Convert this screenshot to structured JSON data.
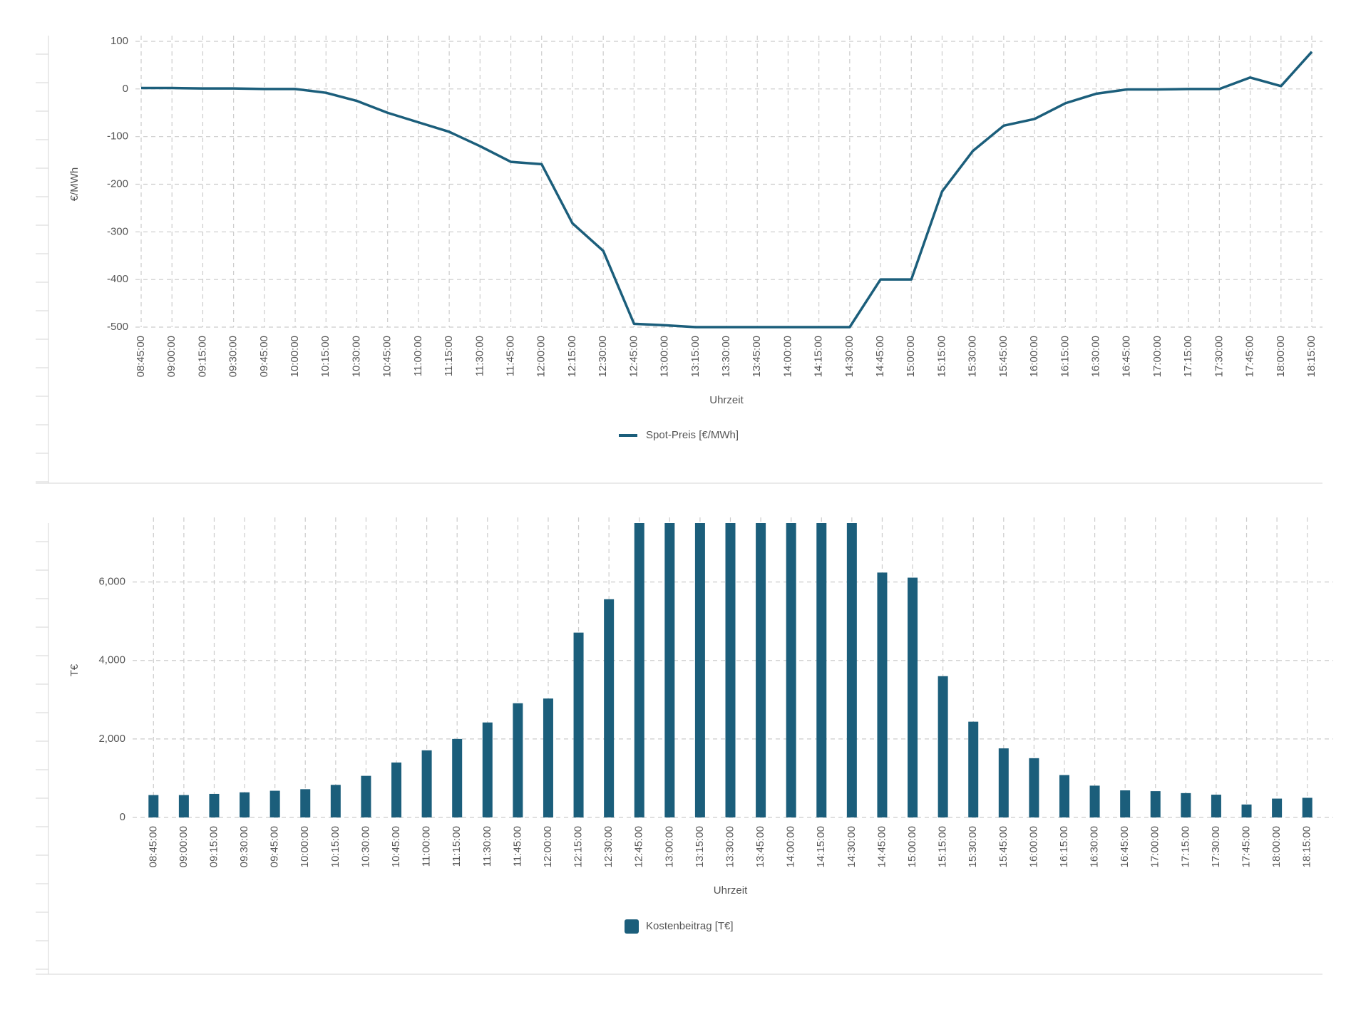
{
  "chart_data": [
    {
      "type": "line",
      "x_label": "Uhrzeit",
      "y_label": "€/MWh",
      "categories": [
        "08:45:00",
        "09:00:00",
        "09:15:00",
        "09:30:00",
        "09:45:00",
        "10:00:00",
        "10:15:00",
        "10:30:00",
        "10:45:00",
        "11:00:00",
        "11:15:00",
        "11:30:00",
        "11:45:00",
        "12:00:00",
        "12:15:00",
        "12:30:00",
        "12:45:00",
        "13:00:00",
        "13:15:00",
        "13:30:00",
        "13:45:00",
        "14:00:00",
        "14:15:00",
        "14:30:00",
        "14:45:00",
        "15:00:00",
        "15:15:00",
        "15:30:00",
        "15:45:00",
        "16:00:00",
        "16:15:00",
        "16:30:00",
        "16:45:00",
        "17:00:00",
        "17:15:00",
        "17:30:00",
        "17:45:00",
        "18:00:00",
        "18:15:00"
      ],
      "series": [
        {
          "name": "Spot-Preis [€/MWh]",
          "color": "#1b5e7b",
          "values": [
            2,
            2,
            1,
            1,
            0,
            0,
            -8,
            -25,
            -50,
            -70,
            -90,
            -120,
            -153,
            -158,
            -282,
            -340,
            -493,
            -496,
            -500,
            -500,
            -500,
            -500,
            -500,
            -500,
            -400,
            -400,
            -215,
            -130,
            -77,
            -63,
            -30,
            -10,
            -1,
            -1,
            0,
            0,
            24,
            6,
            78
          ]
        }
      ],
      "ylim": [
        -500,
        100
      ],
      "yticks": [
        100,
        0,
        -100,
        -200,
        -300,
        -400,
        -500
      ],
      "grid": true,
      "legend": "bottom"
    },
    {
      "type": "bar",
      "x_label": "Uhrzeit",
      "y_label": "T€",
      "categories": [
        "08:45:00",
        "09:00:00",
        "09:15:00",
        "09:30:00",
        "09:45:00",
        "10:00:00",
        "10:15:00",
        "10:30:00",
        "10:45:00",
        "11:00:00",
        "11:15:00",
        "11:30:00",
        "11:45:00",
        "12:00:00",
        "12:15:00",
        "12:30:00",
        "12:45:00",
        "13:00:00",
        "13:15:00",
        "13:30:00",
        "13:45:00",
        "14:00:00",
        "14:15:00",
        "14:30:00",
        "14:45:00",
        "15:00:00",
        "15:15:00",
        "15:30:00",
        "15:45:00",
        "16:00:00",
        "16:15:00",
        "16:30:00",
        "16:45:00",
        "17:00:00",
        "17:15:00",
        "17:30:00",
        "17:45:00",
        "18:00:00",
        "18:15:00"
      ],
      "series": [
        {
          "name": "Kostenbeitrag [T€]",
          "color": "#1b5e7b",
          "values": [
            570,
            570,
            600,
            640,
            680,
            720,
            830,
            1060,
            1400,
            1710,
            2000,
            2420,
            2910,
            3030,
            4710,
            5560,
            7500,
            7500,
            7500,
            7500,
            7500,
            7500,
            7500,
            7500,
            6240,
            6110,
            3600,
            2440,
            1760,
            1510,
            1080,
            810,
            690,
            670,
            620,
            580,
            330,
            480,
            500
          ]
        }
      ],
      "ylim": [
        0,
        7500
      ],
      "yticks": [
        0,
        {
          "value": 2000,
          "label": "2,000"
        },
        {
          "value": 4000,
          "label": "4,000"
        },
        {
          "value": 6000,
          "label": "6,000"
        }
      ],
      "grid": true,
      "legend": "bottom"
    }
  ]
}
